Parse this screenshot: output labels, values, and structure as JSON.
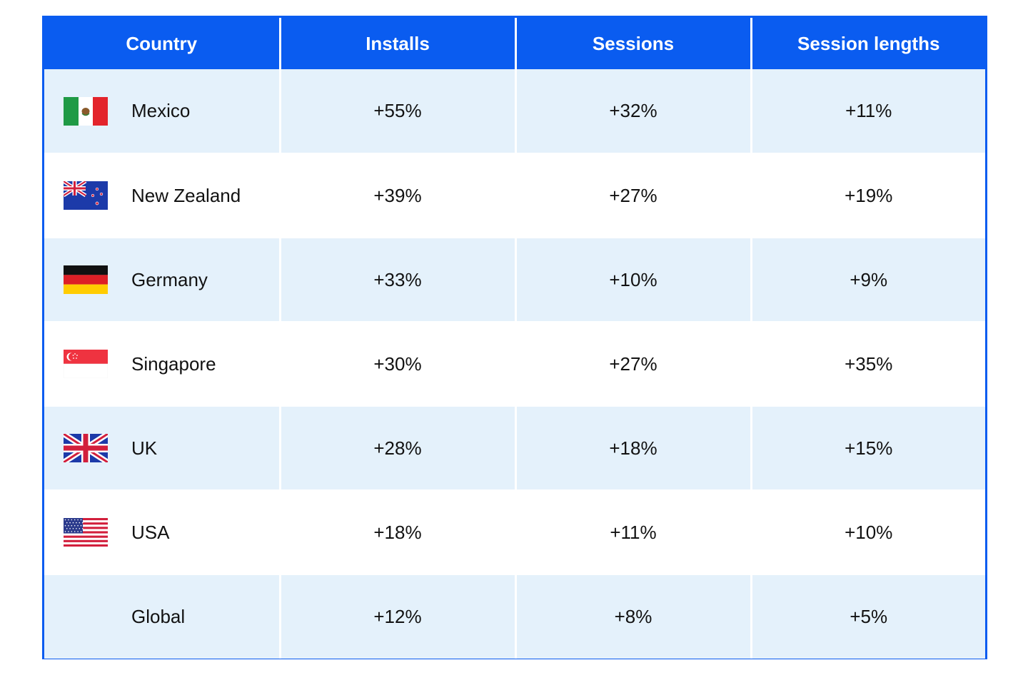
{
  "table": {
    "headers": [
      "Country",
      "Installs",
      "Sessions",
      "Session lengths"
    ],
    "rows": [
      {
        "country": "Mexico",
        "flag": "mexico-flag-icon",
        "installs": "+55%",
        "sessions": "+32%",
        "session_lengths": "+11%"
      },
      {
        "country": "New Zealand",
        "flag": "new-zealand-flag-icon",
        "installs": "+39%",
        "sessions": "+27%",
        "session_lengths": "+19%"
      },
      {
        "country": "Germany",
        "flag": "germany-flag-icon",
        "installs": "+33%",
        "sessions": "+10%",
        "session_lengths": "+9%"
      },
      {
        "country": "Singapore",
        "flag": "singapore-flag-icon",
        "installs": "+30%",
        "sessions": "+27%",
        "session_lengths": "+35%"
      },
      {
        "country": "UK",
        "flag": "uk-flag-icon",
        "installs": "+28%",
        "sessions": "+18%",
        "session_lengths": "+15%"
      },
      {
        "country": "USA",
        "flag": "usa-flag-icon",
        "installs": "+18%",
        "sessions": "+11%",
        "session_lengths": "+10%"
      },
      {
        "country": "Global",
        "flag": "",
        "installs": "+12%",
        "sessions": "+8%",
        "session_lengths": "+5%"
      }
    ]
  },
  "colors": {
    "header_bg": "#0a5cf0",
    "header_text": "#ffffff",
    "row_tint": "#e4f1fb",
    "row_plain": "#ffffff",
    "body_text": "#121212"
  }
}
